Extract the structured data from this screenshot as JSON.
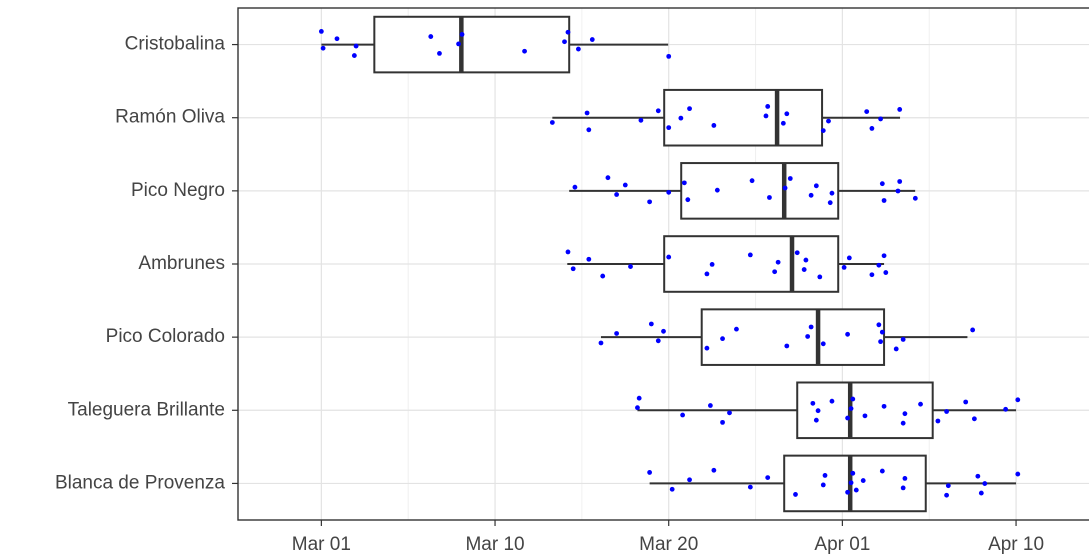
{
  "chart_data": {
    "type": "box",
    "orientation": "horizontal",
    "categories": [
      "Cristobalina",
      "Ramón Oliva",
      "Pico Negro",
      "Ambrunes",
      "Pico Colorado",
      "Taleguera Brillante",
      "Blanca de Provenza"
    ],
    "boxes": [
      {
        "min": 0,
        "q1": 3.05,
        "median": 8.06,
        "q3": 14.27,
        "max": 19.97
      },
      {
        "min": 13.3,
        "q1": 19.74,
        "median": 26.24,
        "q3": 28.83,
        "max": 33.32
      },
      {
        "min": 14.27,
        "q1": 20.72,
        "median": 26.65,
        "q3": 29.76,
        "max": 34.19
      },
      {
        "min": 14.16,
        "q1": 19.74,
        "median": 27.1,
        "q3": 29.76,
        "max": 32.4
      },
      {
        "min": 16.1,
        "q1": 21.9,
        "median": 28.6,
        "q3": 32.4,
        "max": 37.2
      },
      {
        "min": 18.2,
        "q1": 27.4,
        "median": 30.45,
        "q3": 35.2,
        "max": 40
      },
      {
        "min": 18.9,
        "q1": 26.65,
        "median": 30.45,
        "q3": 34.8,
        "max": 40
      }
    ],
    "points": [
      [
        0,
        0.1,
        0.9,
        1.9,
        2.0,
        6.3,
        6.8,
        7.9,
        8.1,
        11.7,
        14.0,
        14.2,
        14.8,
        15.6,
        20.0
      ],
      [
        13.3,
        15.3,
        15.4,
        18.4,
        19.4,
        20.0,
        20.7,
        21.2,
        22.6,
        25.6,
        25.7,
        26.6,
        26.8,
        28.9,
        29.2,
        31.4,
        31.7,
        32.2,
        33.3
      ],
      [
        14.6,
        16.5,
        17.0,
        17.5,
        18.9,
        20.0,
        20.9,
        21.1,
        22.8,
        24.8,
        25.8,
        26.7,
        27.0,
        28.2,
        28.5,
        29.3,
        29.4,
        32.3,
        32.4,
        33.2,
        33.3,
        34.2
      ],
      [
        14.2,
        14.5,
        15.4,
        16.2,
        17.8,
        20.0,
        22.2,
        22.5,
        24.7,
        26.1,
        26.3,
        27.4,
        27.8,
        27.9,
        28.7,
        30.1,
        30.4,
        31.7,
        32.1,
        32.4,
        32.5
      ],
      [
        16.1,
        17.0,
        19.0,
        19.4,
        19.7,
        22.2,
        23.1,
        23.9,
        26.8,
        28.0,
        28.2,
        28.9,
        30.3,
        32.1,
        32.2,
        32.3,
        33.1,
        33.5,
        37.5
      ],
      [
        18.2,
        18.3,
        20.8,
        22.4,
        23.1,
        23.5,
        28.3,
        28.5,
        28.6,
        29.4,
        30.3,
        30.5,
        30.6,
        31.3,
        32.4,
        33.5,
        33.6,
        34.5,
        35.5,
        36.0,
        37.1,
        37.6,
        39.4,
        40.1
      ],
      [
        18.9,
        20.2,
        21.2,
        22.6,
        24.7,
        25.7,
        27.3,
        28.9,
        29.0,
        30.3,
        30.5,
        30.6,
        30.8,
        31.2,
        32.3,
        33.5,
        33.6,
        36.0,
        36.1,
        37.8,
        38.0,
        38.2,
        40.1
      ]
    ],
    "point_color": "#0000ff",
    "box_color": "#333333",
    "xlim": [
      -4.8,
      44.2
    ],
    "xticks": [
      {
        "value": 0,
        "label": "Mar 01"
      },
      {
        "value": 10,
        "label": "Mar 10"
      },
      {
        "value": 20,
        "label": "Mar 20"
      },
      {
        "value": 30,
        "label": "Apr 01"
      },
      {
        "value": 40,
        "label": "Apr 10"
      }
    ],
    "grid": true
  }
}
